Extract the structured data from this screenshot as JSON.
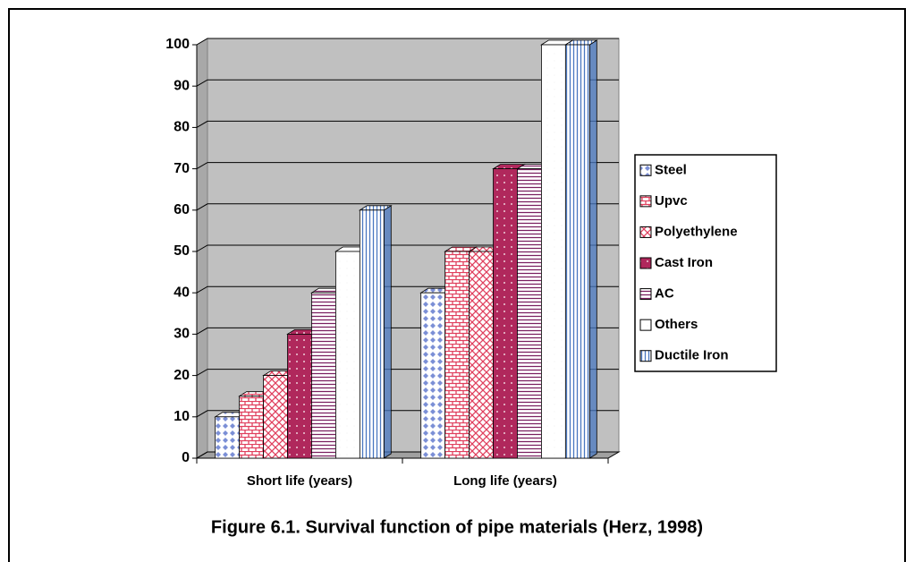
{
  "chart_data": {
    "type": "bar3d",
    "caption": "Figure 6.1. Survival function of pipe materials (Herz, 1998)",
    "categories": [
      "Short life (years)",
      "Long life (years)"
    ],
    "series": [
      {
        "name": "Steel",
        "color": "#7b8fd6",
        "values": [
          10,
          40
        ]
      },
      {
        "name": "Upvc",
        "color": "#e0405e",
        "values": [
          15,
          50
        ]
      },
      {
        "name": "Polyethylene",
        "color": "#e0405e",
        "values": [
          20,
          50
        ]
      },
      {
        "name": "Cast Iron",
        "color": "#b0285c",
        "values": [
          30,
          70
        ]
      },
      {
        "name": "AC",
        "color": "#7a1f60",
        "values": [
          40,
          70
        ]
      },
      {
        "name": "Others",
        "color": "#ffffff",
        "values": [
          50,
          100
        ]
      },
      {
        "name": "Ductile Iron",
        "color": "#4a78c0",
        "values": [
          60,
          100
        ]
      }
    ],
    "ylim": [
      0,
      100
    ],
    "yticks": [
      0,
      10,
      20,
      30,
      40,
      50,
      60,
      70,
      80,
      90,
      100
    ],
    "grid": true,
    "legend": "right"
  }
}
